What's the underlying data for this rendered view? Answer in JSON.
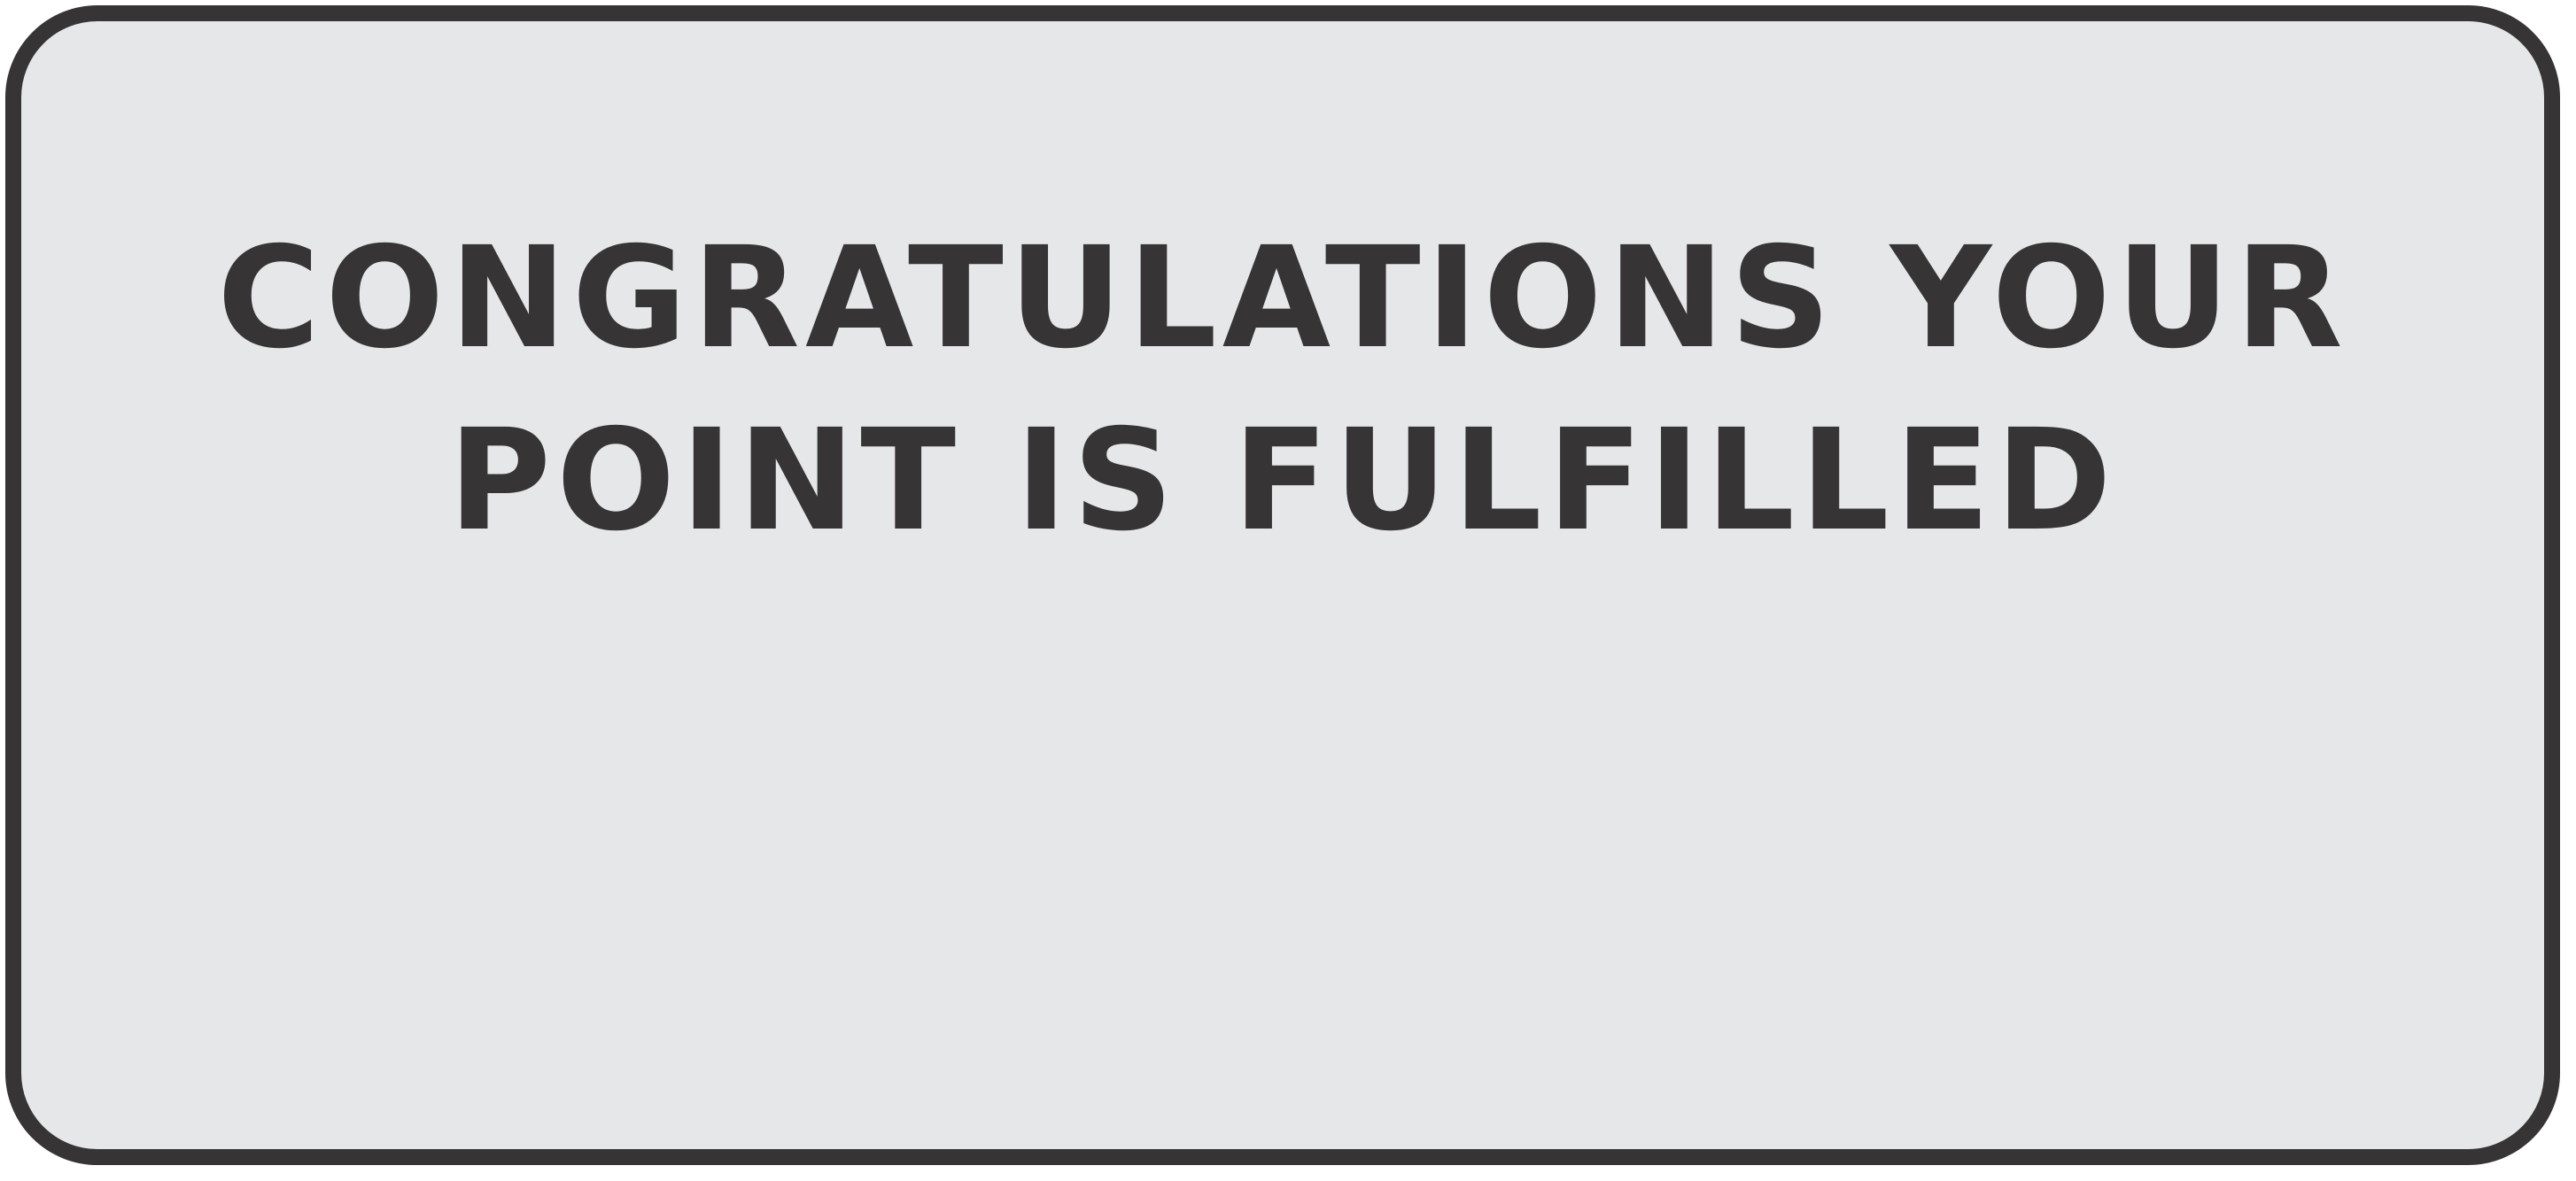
{
  "message": {
    "line1": "CONGRATULATIONS YOUR",
    "line2": "POINT IS FULFILLED"
  },
  "colors": {
    "background": "#e6e7e9",
    "border": "#363435",
    "text": "#363435"
  }
}
